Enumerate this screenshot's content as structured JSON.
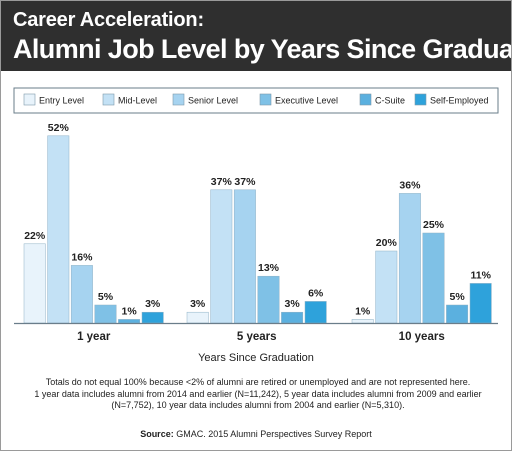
{
  "header": {
    "supertitle": "Career Acceleration:",
    "title": "Alumni Job Level by Years Since Graduation"
  },
  "colors": {
    "header_bg": "#2f2f2f",
    "axis": "#6a7d8a",
    "text": "#222222"
  },
  "chart_data": {
    "type": "bar",
    "title": "Alumni Job Level by Years Since Graduation",
    "xlabel": "Years Since Graduation",
    "ylabel": "",
    "categories": [
      "1 year",
      "5 years",
      "10 years"
    ],
    "series": [
      {
        "name": "Entry Level",
        "color": "#e8f3fb",
        "values": [
          22,
          3,
          1
        ],
        "labels": [
          "22%",
          "3%",
          "1%"
        ]
      },
      {
        "name": "Mid-Level",
        "color": "#c3e1f5",
        "values": [
          52,
          37,
          20
        ],
        "labels": [
          "52%",
          "37%",
          "20%"
        ]
      },
      {
        "name": "Senior  Level",
        "color": "#a6d3f0",
        "values": [
          16,
          37,
          36
        ],
        "labels": [
          "16%",
          "37%",
          "36%"
        ]
      },
      {
        "name": "Executive Level",
        "color": "#7fc1e6",
        "values": [
          5,
          13,
          25
        ],
        "labels": [
          "5%",
          "13%",
          "25%"
        ]
      },
      {
        "name": "C-Suite",
        "color": "#5bb0df",
        "values": [
          1,
          3,
          5
        ],
        "labels": [
          "1%",
          "3%",
          "5%"
        ]
      },
      {
        "name": "Self-Employed",
        "color": "#2ea2db",
        "values": [
          3,
          6,
          11
        ],
        "labels": [
          "3%",
          "6%",
          "11%"
        ]
      }
    ],
    "ylim": [
      0,
      55
    ],
    "grid": false,
    "legend": "top"
  },
  "notes": [
    "Totals do not equal 100% because <2% of alumni are retired or unemployed and are not represented here.",
    "1 year data includes alumni from 2014 and earlier (N=11,242), 5 year data includes alumni from 2009 and earlier",
    "(N=7,752), 10 year data includes alumni from 2004 and earlier (N=5,310)."
  ],
  "source": {
    "label": "Source:",
    "text": " GMAC. 2015 Alumni Perspectives Survey Report"
  }
}
